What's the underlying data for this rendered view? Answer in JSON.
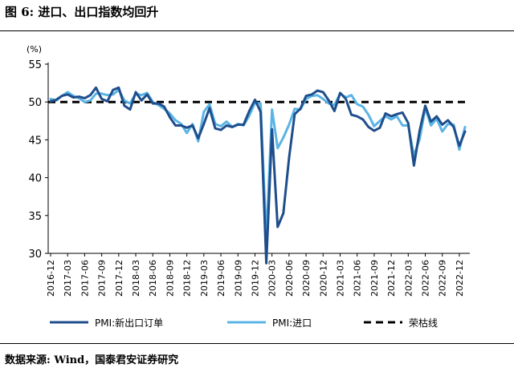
{
  "figure": {
    "title": "图 6:  进口、出口指数均回升",
    "source": "数据来源:  Wind，国泰君安证券研究"
  },
  "chart_data": {
    "type": "line",
    "unit_label": "(%)",
    "ylim": [
      30,
      55
    ],
    "yticks": [
      30,
      35,
      40,
      45,
      50,
      55
    ],
    "grid": false,
    "legend_position": "bottom",
    "xtick_labels": [
      "2016-12",
      "2017-03",
      "2017-06",
      "2017-09",
      "2017-12",
      "2018-03",
      "2018-06",
      "2018-09",
      "2018-12",
      "2019-03",
      "2019-06",
      "2019-09",
      "2019-12",
      "2020-03",
      "2020-06",
      "2020-09",
      "2020-12",
      "2021-03",
      "2021-06",
      "2021-09",
      "2021-12",
      "2022-03",
      "2022-06",
      "2022-09",
      "2022-12"
    ],
    "x": [
      "2016-12",
      "2017-01",
      "2017-02",
      "2017-03",
      "2017-04",
      "2017-05",
      "2017-06",
      "2017-07",
      "2017-08",
      "2017-09",
      "2017-10",
      "2017-11",
      "2017-12",
      "2018-01",
      "2018-02",
      "2018-03",
      "2018-04",
      "2018-05",
      "2018-06",
      "2018-07",
      "2018-08",
      "2018-09",
      "2018-10",
      "2018-11",
      "2018-12",
      "2019-01",
      "2019-02",
      "2019-03",
      "2019-04",
      "2019-05",
      "2019-06",
      "2019-07",
      "2019-08",
      "2019-09",
      "2019-10",
      "2019-11",
      "2019-12",
      "2020-01",
      "2020-02",
      "2020-03",
      "2020-04",
      "2020-05",
      "2020-06",
      "2020-07",
      "2020-08",
      "2020-09",
      "2020-10",
      "2020-11",
      "2020-12",
      "2021-01",
      "2021-02",
      "2021-03",
      "2021-04",
      "2021-05",
      "2021-06",
      "2021-07",
      "2021-08",
      "2021-09",
      "2021-10",
      "2021-11",
      "2021-12",
      "2022-01",
      "2022-02",
      "2022-03",
      "2022-04",
      "2022-05",
      "2022-06",
      "2022-07",
      "2022-08",
      "2022-09",
      "2022-10",
      "2022-11",
      "2022-12",
      "2023-01"
    ],
    "series": [
      {
        "name": "PMI:新出口订单",
        "color": "#1f4e8c",
        "style": "solid",
        "values": [
          50.1,
          50.3,
          50.8,
          51.0,
          50.6,
          50.7,
          50.5,
          50.9,
          51.9,
          50.4,
          50.1,
          51.6,
          51.9,
          49.5,
          49.0,
          51.3,
          50.2,
          51.0,
          49.8,
          49.8,
          49.4,
          48.0,
          46.9,
          46.9,
          46.6,
          46.9,
          45.2,
          47.1,
          49.2,
          46.5,
          46.3,
          46.9,
          46.7,
          47.0,
          47.0,
          48.8,
          50.3,
          48.7,
          28.7,
          46.4,
          33.5,
          35.3,
          42.6,
          48.4,
          49.1,
          50.8,
          51.0,
          51.5,
          51.3,
          50.2,
          48.8,
          51.2,
          50.4,
          48.3,
          48.1,
          47.7,
          46.7,
          46.2,
          46.6,
          48.5,
          48.1,
          48.4,
          48.6,
          47.2,
          41.6,
          46.2,
          49.5,
          47.4,
          48.1,
          47.0,
          47.6,
          46.7,
          44.2,
          46.1
        ]
      },
      {
        "name": "PMI:进口",
        "color": "#5ab4e5",
        "style": "solid",
        "values": [
          50.4,
          50.2,
          50.8,
          51.3,
          50.8,
          50.5,
          50.0,
          50.2,
          51.1,
          51.1,
          50.9,
          51.0,
          51.6,
          50.2,
          49.8,
          51.1,
          50.9,
          51.2,
          50.0,
          49.6,
          49.1,
          48.5,
          47.6,
          47.1,
          45.9,
          47.1,
          44.8,
          48.7,
          49.7,
          47.1,
          46.8,
          47.4,
          46.7,
          47.1,
          46.9,
          48.2,
          49.9,
          49.8,
          31.9,
          49.0,
          43.9,
          45.3,
          47.0,
          49.1,
          49.0,
          50.4,
          50.8,
          50.9,
          50.4,
          49.8,
          49.6,
          51.1,
          50.6,
          50.9,
          49.7,
          49.4,
          48.3,
          46.8,
          47.5,
          48.1,
          47.7,
          48.1,
          46.9,
          46.9,
          42.9,
          45.1,
          49.2,
          46.9,
          47.8,
          46.1,
          47.1,
          47.0,
          43.7,
          46.7
        ]
      },
      {
        "name": "荣枯线",
        "color": "#000000",
        "style": "dashed",
        "value": 50
      }
    ]
  }
}
